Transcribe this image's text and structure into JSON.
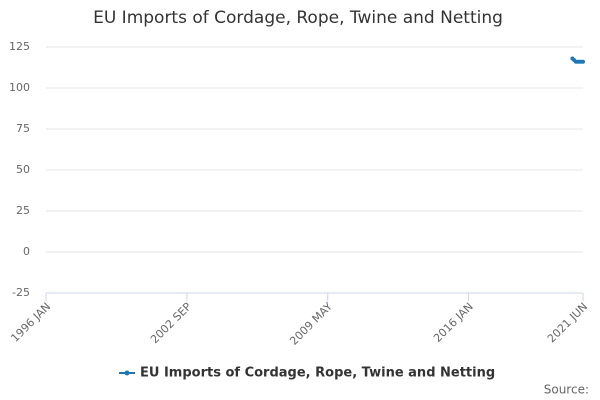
{
  "chart_data": {
    "type": "line",
    "title": "EU Imports of Cordage, Rope, Twine and Netting",
    "source": "Source:",
    "x": [
      "2020-12",
      "2021-01",
      "2021-02",
      "2021-03",
      "2021-04",
      "2021-05",
      "2021-06"
    ],
    "series": [
      {
        "name": "EU Imports of Cordage, Rope, Twine and Netting",
        "color": "#1f78b4",
        "values": [
          118,
          117,
          116,
          116,
          116,
          116,
          116
        ]
      }
    ],
    "xlim": [
      "1996-01",
      "2021-06"
    ],
    "xticks": [
      {
        "value": "1996-01",
        "label": "1996 JAN"
      },
      {
        "value": "2002-09",
        "label": "2002 SEP"
      },
      {
        "value": "2009-05",
        "label": "2009 MAY"
      },
      {
        "value": "2016-01",
        "label": "2016 JAN"
      },
      {
        "value": "2021-06",
        "label": "2021 JUN"
      }
    ],
    "ylim": [
      -25,
      125
    ],
    "yticks": [
      -25,
      0,
      25,
      50,
      75,
      100,
      125
    ],
    "grid": true,
    "legend": "bottom"
  }
}
